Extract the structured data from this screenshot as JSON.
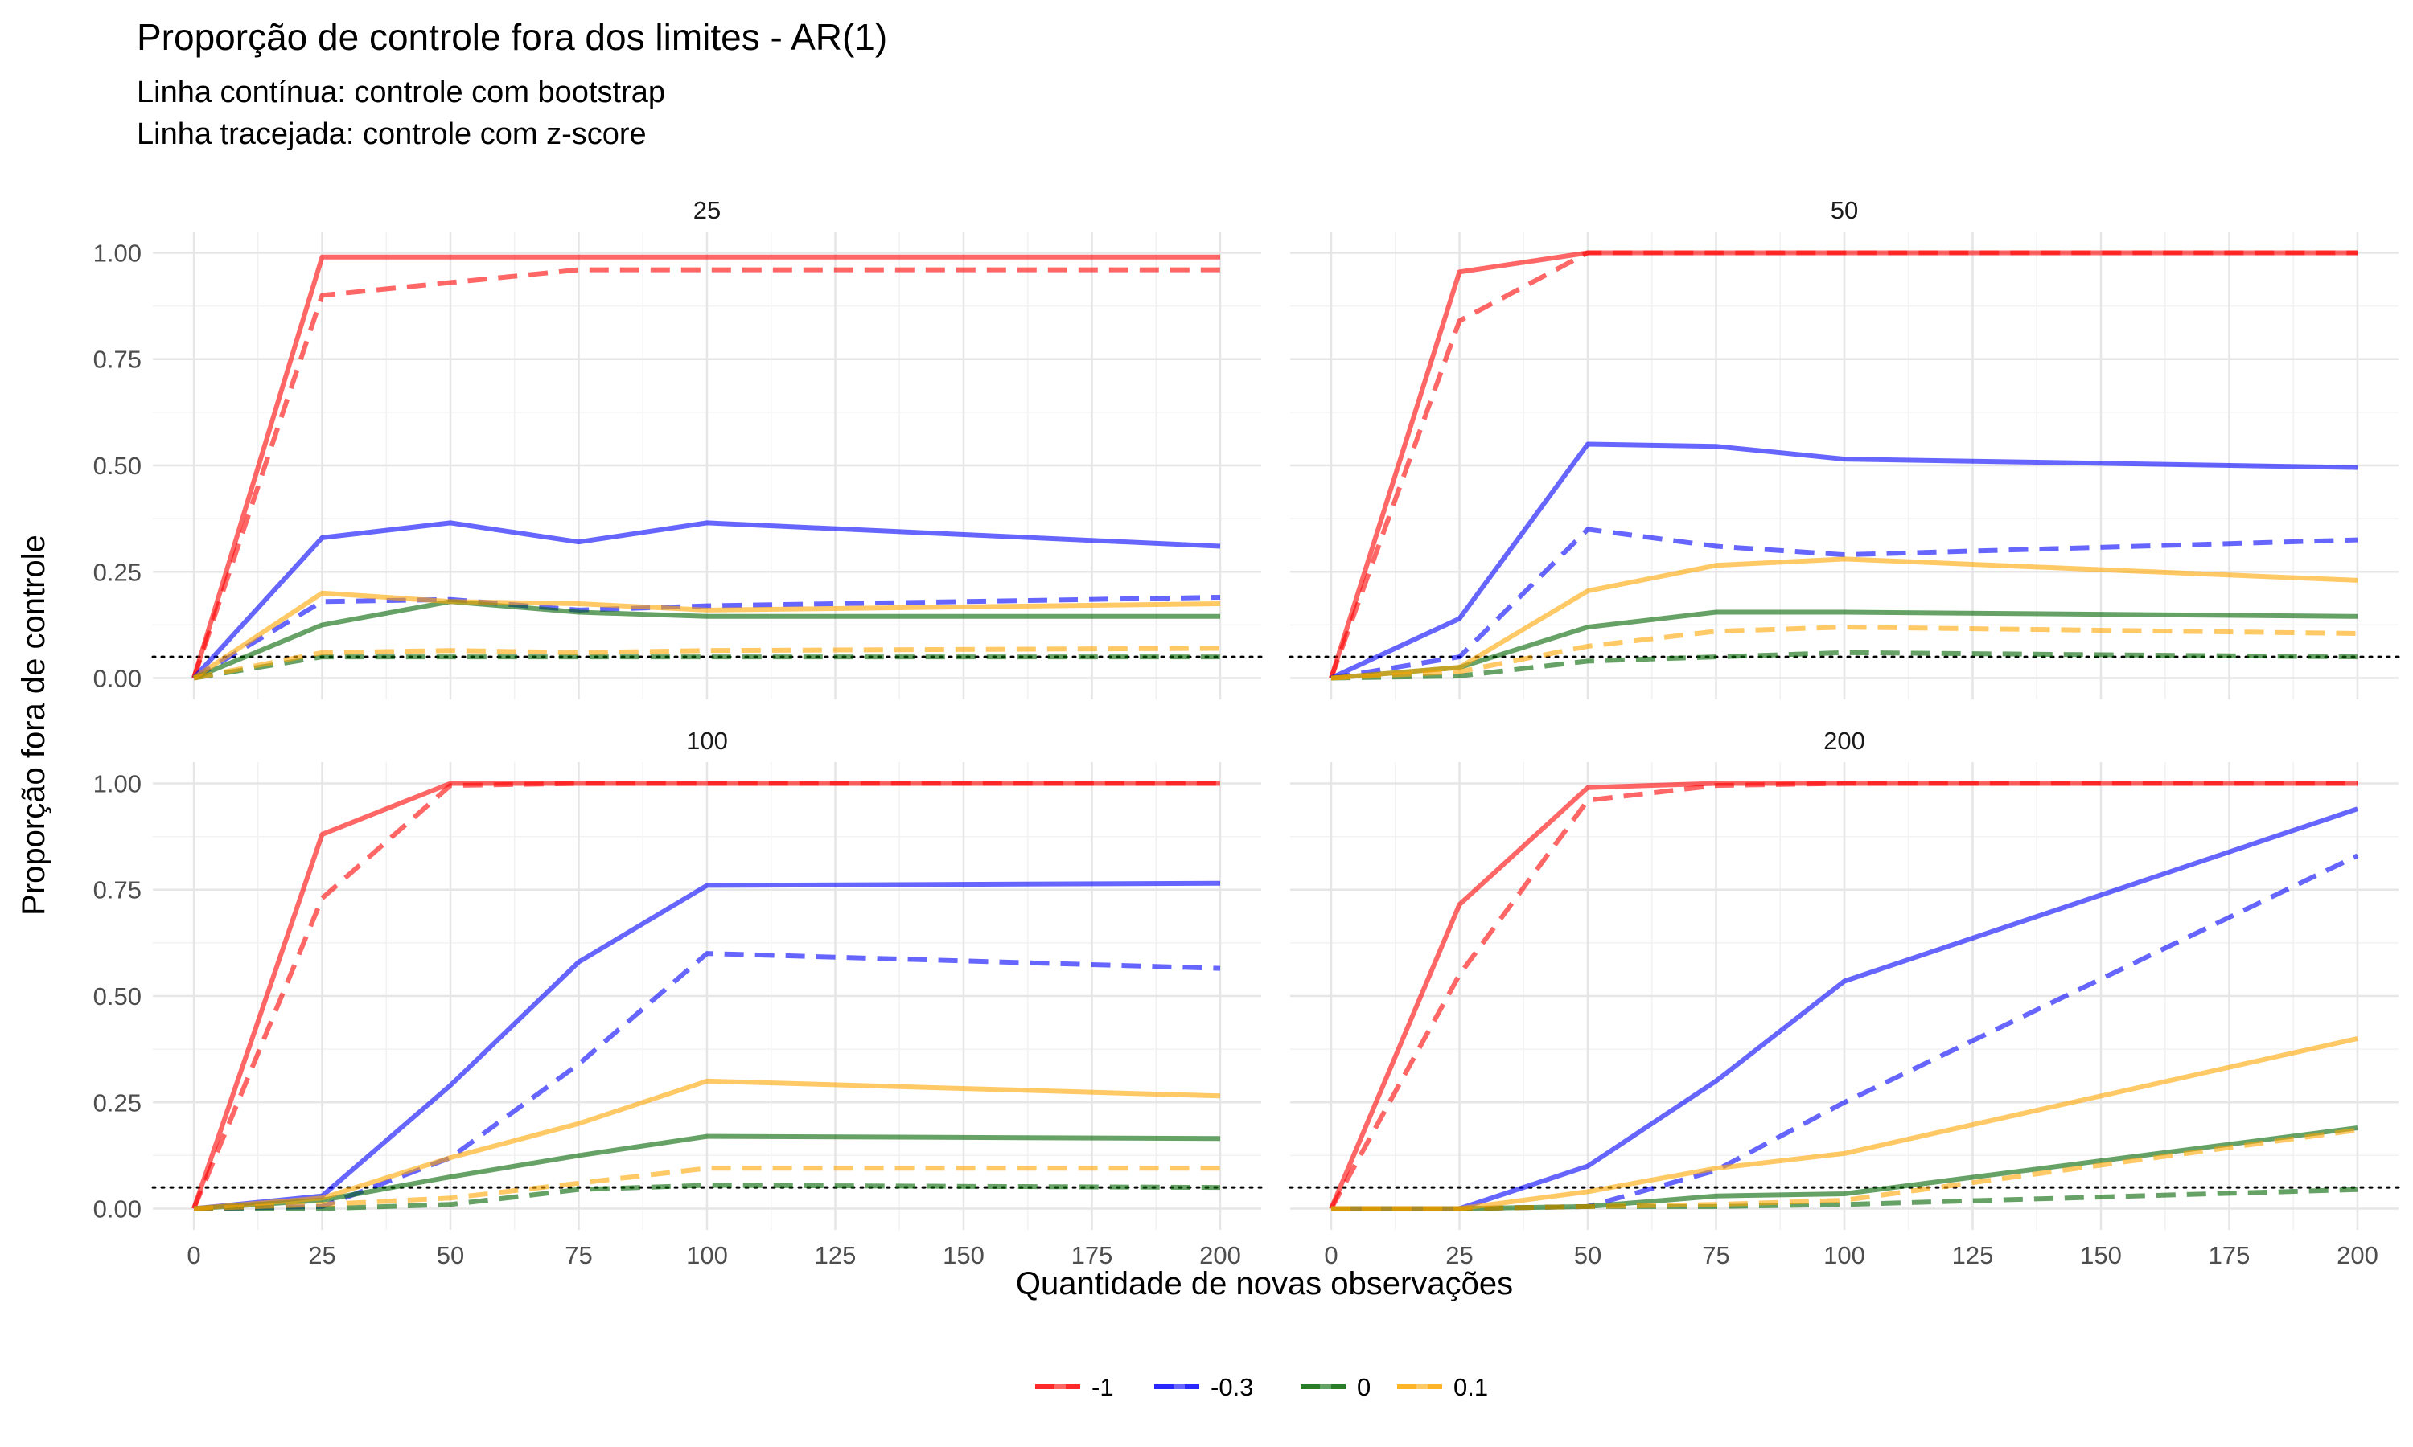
{
  "chart_data": {
    "type": "line",
    "title": "Proporção de controle fora dos limites - AR(1)",
    "subtitle_lines": [
      "Linha contínua: controle com bootstrap",
      "Linha tracejada: controle com z-score"
    ],
    "xlabel": "Quantidade de novas observações",
    "ylabel": "Proporção fora de controle",
    "xlim": [
      -8,
      208
    ],
    "ylim": [
      -0.05,
      1.05
    ],
    "x_ticks": [
      0,
      25,
      50,
      75,
      100,
      125,
      150,
      175,
      200
    ],
    "y_ticks": [
      0,
      0.25,
      0.5,
      0.75,
      1.0
    ],
    "y_tick_labels": [
      "0.00",
      "0.25",
      "0.50",
      "0.75",
      "1.00"
    ],
    "reference_line": {
      "y": 0.05,
      "style": "dotted",
      "color": "#000000"
    },
    "grid": true,
    "legend_position": "bottom",
    "legend": [
      {
        "label": "-1",
        "color": "#FF0000"
      },
      {
        "label": "-0.3",
        "color": "#0000FF"
      },
      {
        "label": "0",
        "color": "#006400"
      },
      {
        "label": "0.1",
        "color": "#FFA500"
      }
    ],
    "x": [
      0,
      25,
      50,
      75,
      100,
      200
    ],
    "panels": [
      {
        "label": "25",
        "series": [
          {
            "group": "-1",
            "method": "bootstrap",
            "values": [
              0,
              0.99,
              0.99,
              0.99,
              0.99,
              0.99
            ]
          },
          {
            "group": "-1",
            "method": "z-score",
            "values": [
              0,
              0.9,
              0.93,
              0.96,
              0.96,
              0.96
            ]
          },
          {
            "group": "-0.3",
            "method": "bootstrap",
            "values": [
              0,
              0.33,
              0.365,
              0.32,
              0.365,
              0.31
            ]
          },
          {
            "group": "-0.3",
            "method": "z-score",
            "values": [
              0,
              0.18,
              0.185,
              0.16,
              0.17,
              0.19
            ]
          },
          {
            "group": "0",
            "method": "bootstrap",
            "values": [
              0,
              0.125,
              0.18,
              0.155,
              0.145,
              0.145
            ]
          },
          {
            "group": "0",
            "method": "z-score",
            "values": [
              0,
              0.05,
              0.05,
              0.05,
              0.05,
              0.05
            ]
          },
          {
            "group": "0.1",
            "method": "bootstrap",
            "values": [
              0,
              0.2,
              0.18,
              0.175,
              0.16,
              0.175
            ]
          },
          {
            "group": "0.1",
            "method": "z-score",
            "values": [
              0,
              0.06,
              0.065,
              0.06,
              0.065,
              0.07
            ]
          }
        ]
      },
      {
        "label": "50",
        "series": [
          {
            "group": "-1",
            "method": "bootstrap",
            "values": [
              0,
              0.955,
              1.0,
              1.0,
              1.0,
              1.0
            ]
          },
          {
            "group": "-1",
            "method": "z-score",
            "values": [
              0,
              0.84,
              1.0,
              1.0,
              1.0,
              1.0
            ]
          },
          {
            "group": "-0.3",
            "method": "bootstrap",
            "values": [
              0,
              0.14,
              0.55,
              0.545,
              0.515,
              0.495
            ]
          },
          {
            "group": "-0.3",
            "method": "z-score",
            "values": [
              0,
              0.05,
              0.35,
              0.31,
              0.29,
              0.325
            ]
          },
          {
            "group": "0",
            "method": "bootstrap",
            "values": [
              0,
              0.025,
              0.12,
              0.155,
              0.155,
              0.145
            ]
          },
          {
            "group": "0",
            "method": "z-score",
            "values": [
              0,
              0.005,
              0.04,
              0.05,
              0.06,
              0.05
            ]
          },
          {
            "group": "0.1",
            "method": "bootstrap",
            "values": [
              0,
              0.025,
              0.205,
              0.265,
              0.28,
              0.23
            ]
          },
          {
            "group": "0.1",
            "method": "z-score",
            "values": [
              0,
              0.015,
              0.075,
              0.11,
              0.12,
              0.105
            ]
          }
        ]
      },
      {
        "label": "100",
        "series": [
          {
            "group": "-1",
            "method": "bootstrap",
            "values": [
              0,
              0.88,
              1.0,
              1.0,
              1.0,
              1.0
            ]
          },
          {
            "group": "-1",
            "method": "z-score",
            "values": [
              0,
              0.73,
              0.995,
              1.0,
              1.0,
              1.0
            ]
          },
          {
            "group": "-0.3",
            "method": "bootstrap",
            "values": [
              0,
              0.03,
              0.29,
              0.58,
              0.76,
              0.765
            ]
          },
          {
            "group": "-0.3",
            "method": "z-score",
            "values": [
              0,
              0.005,
              0.12,
              0.34,
              0.6,
              0.565
            ]
          },
          {
            "group": "0",
            "method": "bootstrap",
            "values": [
              0,
              0.02,
              0.075,
              0.125,
              0.17,
              0.165
            ]
          },
          {
            "group": "0",
            "method": "z-score",
            "values": [
              0,
              0.0,
              0.01,
              0.045,
              0.055,
              0.05
            ]
          },
          {
            "group": "0.1",
            "method": "bootstrap",
            "values": [
              0,
              0.025,
              0.12,
              0.2,
              0.3,
              0.265
            ]
          },
          {
            "group": "0.1",
            "method": "z-score",
            "values": [
              0,
              0.01,
              0.025,
              0.06,
              0.095,
              0.095
            ]
          }
        ]
      },
      {
        "label": "200",
        "series": [
          {
            "group": "-1",
            "method": "bootstrap",
            "values": [
              0,
              0.715,
              0.99,
              1.0,
              1.0,
              1.0
            ]
          },
          {
            "group": "-1",
            "method": "z-score",
            "values": [
              0,
              0.55,
              0.96,
              0.995,
              1.0,
              1.0
            ]
          },
          {
            "group": "-0.3",
            "method": "bootstrap",
            "values": [
              0,
              0.0,
              0.1,
              0.3,
              0.535,
              0.94
            ]
          },
          {
            "group": "-0.3",
            "method": "z-score",
            "values": [
              0,
              0.0,
              0.005,
              0.09,
              0.25,
              0.83
            ]
          },
          {
            "group": "0",
            "method": "bootstrap",
            "values": [
              0,
              0.0,
              0.005,
              0.03,
              0.035,
              0.19
            ]
          },
          {
            "group": "0",
            "method": "z-score",
            "values": [
              0,
              0.0,
              0.005,
              0.005,
              0.01,
              0.045
            ]
          },
          {
            "group": "0.1",
            "method": "bootstrap",
            "values": [
              0,
              0.0,
              0.04,
              0.095,
              0.13,
              0.4
            ]
          },
          {
            "group": "0.1",
            "method": "z-score",
            "values": [
              0,
              0.0,
              0.005,
              0.01,
              0.02,
              0.185
            ]
          }
        ]
      }
    ]
  }
}
